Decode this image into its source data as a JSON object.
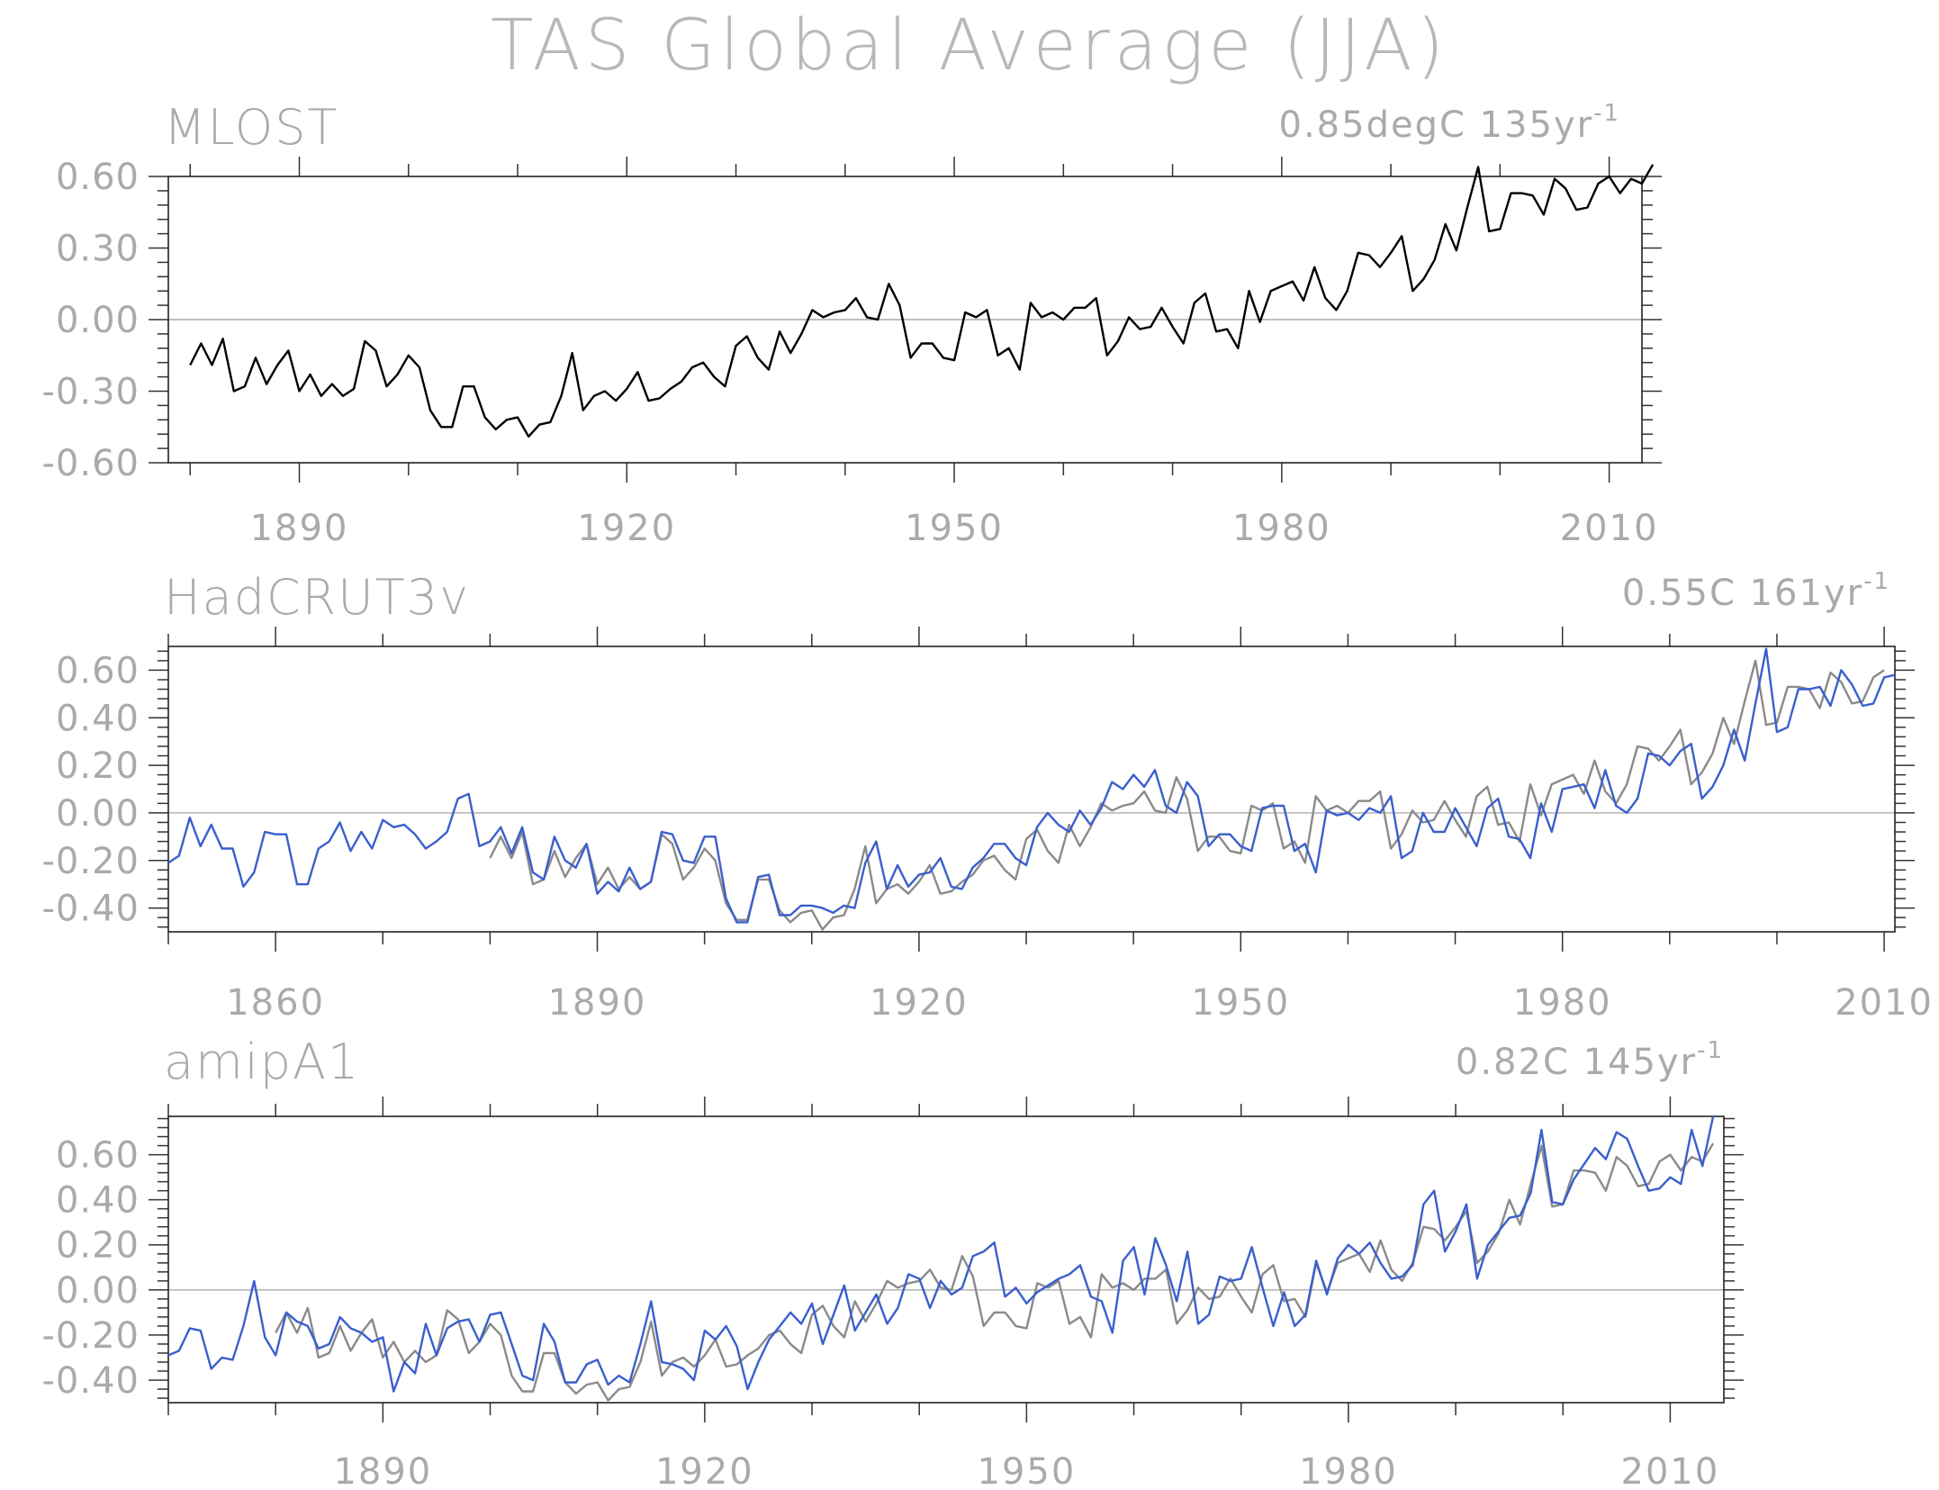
{
  "title": "TAS Global Average (JJA)",
  "colors": {
    "text": "#aaaaaa",
    "frame": "#222222",
    "zero_line": "#999999",
    "primary_line": "#000000",
    "reference_line": "#8a8a8a",
    "model_line": "#3a5fcd"
  },
  "chart_data": [
    {
      "type": "line",
      "panel_label": "MLOST",
      "annotation": {
        "text": "0.85degC 135yr",
        "sup": "-1"
      },
      "xlim": [
        1878,
        2013
      ],
      "ylim": [
        -0.6,
        0.6
      ],
      "x_ticks": [
        1890,
        1920,
        1950,
        1980,
        2010
      ],
      "y_ticks": [
        "0.60",
        "0.30",
        "0.00",
        "-0.30",
        "-0.60"
      ],
      "y_tick_values": [
        0.6,
        0.3,
        0.0,
        -0.3,
        -0.6
      ],
      "series": [
        {
          "color": "#000000",
          "x_start": 1880,
          "values": [
            -0.19,
            -0.1,
            -0.19,
            -0.08,
            -0.3,
            -0.28,
            -0.16,
            -0.27,
            -0.19,
            -0.13,
            -0.3,
            -0.23,
            -0.32,
            -0.27,
            -0.32,
            -0.29,
            -0.09,
            -0.13,
            -0.28,
            -0.23,
            -0.15,
            -0.2,
            -0.38,
            -0.45,
            -0.45,
            -0.28,
            -0.28,
            -0.41,
            -0.46,
            -0.42,
            -0.41,
            -0.49,
            -0.44,
            -0.43,
            -0.32,
            -0.14,
            -0.38,
            -0.32,
            -0.3,
            -0.34,
            -0.29,
            -0.22,
            -0.34,
            -0.33,
            -0.29,
            -0.26,
            -0.2,
            -0.18,
            -0.24,
            -0.28,
            -0.11,
            -0.07,
            -0.16,
            -0.21,
            -0.05,
            -0.14,
            -0.06,
            0.04,
            0.01,
            0.03,
            0.04,
            0.09,
            0.01,
            0.0,
            0.15,
            0.06,
            -0.16,
            -0.1,
            -0.1,
            -0.16,
            -0.17,
            0.03,
            0.01,
            0.04,
            -0.15,
            -0.12,
            -0.21,
            0.07,
            0.01,
            0.03,
            0.0,
            0.05,
            0.05,
            0.09,
            -0.15,
            -0.09,
            0.01,
            -0.04,
            -0.03,
            0.05,
            -0.03,
            -0.1,
            0.07,
            0.11,
            -0.05,
            -0.04,
            -0.12,
            0.12,
            -0.01,
            0.12,
            0.14,
            0.16,
            0.08,
            0.22,
            0.09,
            0.04,
            0.12,
            0.28,
            0.27,
            0.22,
            0.28,
            0.35,
            0.12,
            0.17,
            0.25,
            0.4,
            0.29,
            0.47,
            0.64,
            0.37,
            0.38,
            0.53,
            0.53,
            0.52,
            0.44,
            0.59,
            0.55,
            0.46,
            0.47,
            0.57,
            0.6,
            0.53,
            0.59,
            0.57,
            0.65
          ]
        }
      ]
    },
    {
      "type": "line",
      "panel_label": "HadCRUT3v",
      "annotation": {
        "text": "0.55C 161yr",
        "sup": "-1"
      },
      "xlim": [
        1850,
        2011
      ],
      "ylim": [
        -0.5,
        0.7
      ],
      "x_ticks": [
        1860,
        1890,
        1920,
        1950,
        1980,
        2010
      ],
      "y_ticks": [
        "0.60",
        "0.40",
        "0.20",
        "0.00",
        "-0.20",
        "-0.40"
      ],
      "y_tick_values": [
        0.6,
        0.4,
        0.2,
        0.0,
        -0.2,
        -0.4
      ],
      "series": [
        {
          "color": "#8a8a8a",
          "x_start": 1880,
          "values": [
            -0.19,
            -0.1,
            -0.19,
            -0.08,
            -0.3,
            -0.28,
            -0.16,
            -0.27,
            -0.19,
            -0.13,
            -0.3,
            -0.23,
            -0.32,
            -0.27,
            -0.32,
            -0.29,
            -0.09,
            -0.13,
            -0.28,
            -0.23,
            -0.15,
            -0.2,
            -0.38,
            -0.45,
            -0.45,
            -0.28,
            -0.28,
            -0.41,
            -0.46,
            -0.42,
            -0.41,
            -0.49,
            -0.44,
            -0.43,
            -0.32,
            -0.14,
            -0.38,
            -0.32,
            -0.3,
            -0.34,
            -0.29,
            -0.22,
            -0.34,
            -0.33,
            -0.29,
            -0.26,
            -0.2,
            -0.18,
            -0.24,
            -0.28,
            -0.11,
            -0.07,
            -0.16,
            -0.21,
            -0.05,
            -0.14,
            -0.06,
            0.04,
            0.01,
            0.03,
            0.04,
            0.09,
            0.01,
            0.0,
            0.15,
            0.06,
            -0.16,
            -0.1,
            -0.1,
            -0.16,
            -0.17,
            0.03,
            0.01,
            0.04,
            -0.15,
            -0.12,
            -0.21,
            0.07,
            0.01,
            0.03,
            0.0,
            0.05,
            0.05,
            0.09,
            -0.15,
            -0.09,
            0.01,
            -0.04,
            -0.03,
            0.05,
            -0.03,
            -0.1,
            0.07,
            0.11,
            -0.05,
            -0.04,
            -0.12,
            0.12,
            -0.01,
            0.12,
            0.14,
            0.16,
            0.08,
            0.22,
            0.09,
            0.04,
            0.12,
            0.28,
            0.27,
            0.22,
            0.28,
            0.35,
            0.12,
            0.17,
            0.25,
            0.4,
            0.29,
            0.47,
            0.64,
            0.37,
            0.38,
            0.53,
            0.53,
            0.52,
            0.44,
            0.59,
            0.55,
            0.46,
            0.47,
            0.57,
            0.6
          ]
        },
        {
          "color": "#3a5fcd",
          "x_start": 1850,
          "values": [
            -0.21,
            -0.18,
            -0.02,
            -0.14,
            -0.05,
            -0.15,
            -0.15,
            -0.31,
            -0.25,
            -0.08,
            -0.09,
            -0.09,
            -0.3,
            -0.3,
            -0.15,
            -0.12,
            -0.04,
            -0.16,
            -0.08,
            -0.15,
            -0.03,
            -0.06,
            -0.05,
            -0.09,
            -0.15,
            -0.12,
            -0.08,
            0.06,
            0.08,
            -0.14,
            -0.12,
            -0.06,
            -0.17,
            -0.06,
            -0.25,
            -0.28,
            -0.1,
            -0.2,
            -0.23,
            -0.13,
            -0.34,
            -0.29,
            -0.33,
            -0.23,
            -0.32,
            -0.29,
            -0.08,
            -0.09,
            -0.2,
            -0.21,
            -0.1,
            -0.1,
            -0.36,
            -0.46,
            -0.46,
            -0.27,
            -0.26,
            -0.43,
            -0.43,
            -0.39,
            -0.39,
            -0.4,
            -0.42,
            -0.39,
            -0.4,
            -0.21,
            -0.12,
            -0.32,
            -0.22,
            -0.31,
            -0.26,
            -0.25,
            -0.19,
            -0.31,
            -0.32,
            -0.23,
            -0.19,
            -0.13,
            -0.13,
            -0.19,
            -0.22,
            -0.06,
            0.0,
            -0.05,
            -0.08,
            0.01,
            -0.05,
            0.02,
            0.13,
            0.1,
            0.16,
            0.11,
            0.18,
            0.03,
            0.0,
            0.13,
            0.07,
            -0.14,
            -0.09,
            -0.09,
            -0.14,
            -0.16,
            0.02,
            0.03,
            0.03,
            -0.16,
            -0.13,
            -0.25,
            0.01,
            -0.01,
            0.0,
            -0.03,
            0.02,
            0.0,
            0.07,
            -0.19,
            -0.16,
            0.0,
            -0.08,
            -0.08,
            0.02,
            -0.06,
            -0.14,
            0.02,
            0.06,
            -0.1,
            -0.11,
            -0.19,
            0.04,
            -0.08,
            0.1,
            0.11,
            0.12,
            0.02,
            0.18,
            0.03,
            0.0,
            0.06,
            0.25,
            0.24,
            0.2,
            0.26,
            0.29,
            0.06,
            0.11,
            0.2,
            0.35,
            0.22,
            0.46,
            0.69,
            0.34,
            0.36,
            0.52,
            0.52,
            0.53,
            0.45,
            0.6,
            0.54,
            0.45,
            0.46,
            0.57,
            0.58
          ]
        }
      ]
    },
    {
      "type": "line",
      "panel_label": "amipA1",
      "annotation": {
        "text": "0.82C 145yr",
        "sup": "-1"
      },
      "xlim": [
        1870,
        2015
      ],
      "ylim": [
        -0.5,
        0.77
      ],
      "x_ticks": [
        1890,
        1920,
        1950,
        1980,
        2010
      ],
      "y_ticks": [
        "0.60",
        "0.40",
        "0.20",
        "0.00",
        "-0.20",
        "-0.40"
      ],
      "y_tick_values": [
        0.6,
        0.4,
        0.2,
        0.0,
        -0.2,
        -0.4
      ],
      "series": [
        {
          "color": "#8a8a8a",
          "x_start": 1880,
          "values": [
            -0.19,
            -0.1,
            -0.19,
            -0.08,
            -0.3,
            -0.28,
            -0.16,
            -0.27,
            -0.19,
            -0.13,
            -0.3,
            -0.23,
            -0.32,
            -0.27,
            -0.32,
            -0.29,
            -0.09,
            -0.13,
            -0.28,
            -0.23,
            -0.15,
            -0.2,
            -0.38,
            -0.45,
            -0.45,
            -0.28,
            -0.28,
            -0.41,
            -0.46,
            -0.42,
            -0.41,
            -0.49,
            -0.44,
            -0.43,
            -0.32,
            -0.14,
            -0.38,
            -0.32,
            -0.3,
            -0.34,
            -0.29,
            -0.22,
            -0.34,
            -0.33,
            -0.29,
            -0.26,
            -0.2,
            -0.18,
            -0.24,
            -0.28,
            -0.11,
            -0.07,
            -0.16,
            -0.21,
            -0.05,
            -0.14,
            -0.06,
            0.04,
            0.01,
            0.03,
            0.04,
            0.09,
            0.01,
            0.0,
            0.15,
            0.06,
            -0.16,
            -0.1,
            -0.1,
            -0.16,
            -0.17,
            0.03,
            0.01,
            0.04,
            -0.15,
            -0.12,
            -0.21,
            0.07,
            0.01,
            0.03,
            0.0,
            0.05,
            0.05,
            0.09,
            -0.15,
            -0.09,
            0.01,
            -0.04,
            -0.03,
            0.05,
            -0.03,
            -0.1,
            0.07,
            0.11,
            -0.05,
            -0.04,
            -0.12,
            0.12,
            -0.01,
            0.12,
            0.14,
            0.16,
            0.08,
            0.22,
            0.09,
            0.04,
            0.12,
            0.28,
            0.27,
            0.22,
            0.28,
            0.35,
            0.12,
            0.17,
            0.25,
            0.4,
            0.29,
            0.47,
            0.64,
            0.37,
            0.38,
            0.53,
            0.53,
            0.52,
            0.44,
            0.59,
            0.55,
            0.46,
            0.47,
            0.57,
            0.6,
            0.53,
            0.59,
            0.57,
            0.65
          ]
        },
        {
          "color": "#3a5fcd",
          "x_start": 1870,
          "values": [
            -0.29,
            -0.27,
            -0.17,
            -0.18,
            -0.35,
            -0.3,
            -0.31,
            -0.16,
            0.04,
            -0.21,
            -0.29,
            -0.1,
            -0.14,
            -0.16,
            -0.26,
            -0.24,
            -0.12,
            -0.17,
            -0.19,
            -0.23,
            -0.21,
            -0.45,
            -0.32,
            -0.37,
            -0.15,
            -0.29,
            -0.17,
            -0.14,
            -0.13,
            -0.23,
            -0.11,
            -0.1,
            -0.24,
            -0.38,
            -0.4,
            -0.15,
            -0.23,
            -0.41,
            -0.41,
            -0.33,
            -0.31,
            -0.42,
            -0.38,
            -0.41,
            -0.24,
            -0.05,
            -0.32,
            -0.33,
            -0.35,
            -0.4,
            -0.18,
            -0.22,
            -0.16,
            -0.25,
            -0.44,
            -0.32,
            -0.22,
            -0.16,
            -0.1,
            -0.15,
            -0.06,
            -0.24,
            -0.11,
            0.02,
            -0.18,
            -0.1,
            -0.02,
            -0.15,
            -0.08,
            0.07,
            0.05,
            -0.08,
            0.04,
            -0.02,
            0.01,
            0.15,
            0.17,
            0.21,
            -0.03,
            0.01,
            -0.06,
            -0.01,
            0.02,
            0.05,
            0.07,
            0.11,
            -0.03,
            -0.05,
            -0.19,
            0.13,
            0.19,
            -0.02,
            0.23,
            0.11,
            -0.05,
            0.17,
            -0.15,
            -0.11,
            0.06,
            0.04,
            0.05,
            0.19,
            0.01,
            -0.16,
            -0.01,
            -0.16,
            -0.11,
            0.13,
            -0.02,
            0.14,
            0.2,
            0.16,
            0.21,
            0.12,
            0.05,
            0.06,
            0.11,
            0.38,
            0.44,
            0.17,
            0.26,
            0.38,
            0.05,
            0.2,
            0.26,
            0.32,
            0.33,
            0.43,
            0.71,
            0.39,
            0.38,
            0.49,
            0.56,
            0.63,
            0.58,
            0.7,
            0.67,
            0.55,
            0.44,
            0.45,
            0.5,
            0.47,
            0.71,
            0.55,
            0.77
          ]
        }
      ]
    }
  ]
}
